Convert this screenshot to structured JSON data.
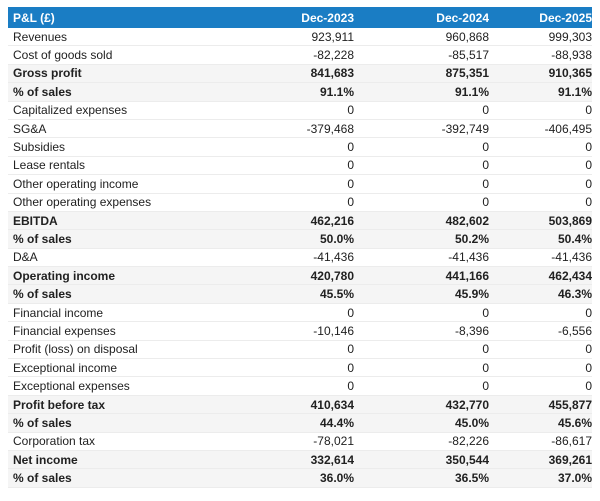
{
  "chart_data": {
    "type": "table",
    "title": "P&L (£)",
    "columns": [
      "Dec-2023",
      "Dec-2024",
      "Dec-2025"
    ],
    "rows": [
      {
        "label": "Revenues",
        "values": [
          "923,911",
          "960,868",
          "999,303"
        ],
        "emphasis": false
      },
      {
        "label": "Cost of goods sold",
        "values": [
          "-82,228",
          "-85,517",
          "-88,938"
        ],
        "emphasis": false
      },
      {
        "label": "Gross profit",
        "values": [
          "841,683",
          "875,351",
          "910,365"
        ],
        "emphasis": true
      },
      {
        "label": "% of sales",
        "values": [
          "91.1%",
          "91.1%",
          "91.1%"
        ],
        "emphasis": true
      },
      {
        "label": "Capitalized expenses",
        "values": [
          "0",
          "0",
          "0"
        ],
        "emphasis": false
      },
      {
        "label": "SG&A",
        "values": [
          "-379,468",
          "-392,749",
          "-406,495"
        ],
        "emphasis": false
      },
      {
        "label": "Subsidies",
        "values": [
          "0",
          "0",
          "0"
        ],
        "emphasis": false
      },
      {
        "label": "Lease rentals",
        "values": [
          "0",
          "0",
          "0"
        ],
        "emphasis": false
      },
      {
        "label": "Other operating income",
        "values": [
          "0",
          "0",
          "0"
        ],
        "emphasis": false
      },
      {
        "label": "Other operating expenses",
        "values": [
          "0",
          "0",
          "0"
        ],
        "emphasis": false
      },
      {
        "label": "EBITDA",
        "values": [
          "462,216",
          "482,602",
          "503,869"
        ],
        "emphasis": true
      },
      {
        "label": "% of sales",
        "values": [
          "50.0%",
          "50.2%",
          "50.4%"
        ],
        "emphasis": true
      },
      {
        "label": "D&A",
        "values": [
          "-41,436",
          "-41,436",
          "-41,436"
        ],
        "emphasis": false
      },
      {
        "label": "Operating income",
        "values": [
          "420,780",
          "441,166",
          "462,434"
        ],
        "emphasis": true
      },
      {
        "label": "% of sales",
        "values": [
          "45.5%",
          "45.9%",
          "46.3%"
        ],
        "emphasis": true
      },
      {
        "label": "Financial income",
        "values": [
          "0",
          "0",
          "0"
        ],
        "emphasis": false
      },
      {
        "label": "Financial expenses",
        "values": [
          "-10,146",
          "-8,396",
          "-6,556"
        ],
        "emphasis": false
      },
      {
        "label": "Profit (loss) on disposal",
        "values": [
          "0",
          "0",
          "0"
        ],
        "emphasis": false
      },
      {
        "label": "Exceptional income",
        "values": [
          "0",
          "0",
          "0"
        ],
        "emphasis": false
      },
      {
        "label": "Exceptional expenses",
        "values": [
          "0",
          "0",
          "0"
        ],
        "emphasis": false
      },
      {
        "label": "Profit before tax",
        "values": [
          "410,634",
          "432,770",
          "455,877"
        ],
        "emphasis": true
      },
      {
        "label": "% of sales",
        "values": [
          "44.4%",
          "45.0%",
          "45.6%"
        ],
        "emphasis": true
      },
      {
        "label": "Corporation tax",
        "values": [
          "-78,021",
          "-82,226",
          "-86,617"
        ],
        "emphasis": false
      },
      {
        "label": "Net income",
        "values": [
          "332,614",
          "350,544",
          "369,261"
        ],
        "emphasis": true
      },
      {
        "label": "% of sales",
        "values": [
          "36.0%",
          "36.5%",
          "37.0%"
        ],
        "emphasis": true
      }
    ],
    "layout": {
      "legend": "none",
      "grid": "horizontal-row-separators",
      "value_alignment": "right",
      "emphasis_rows_shaded": true
    }
  },
  "colors": {
    "header_bg": "#1a7dc4",
    "header_text": "#ffffff",
    "highlight_bg": "#f5f5f5",
    "border": "#ececec",
    "text": "#212121"
  }
}
